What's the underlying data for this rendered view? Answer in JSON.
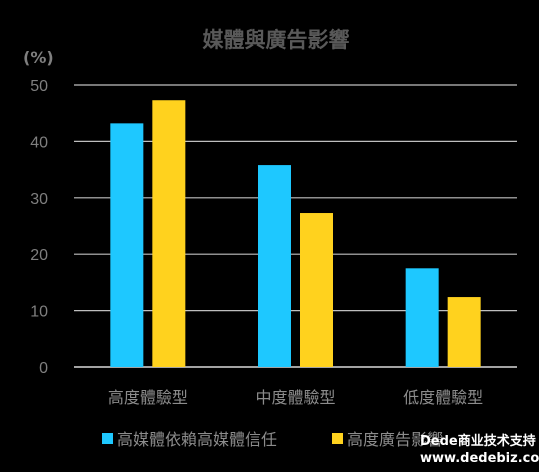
{
  "chart_data": {
    "type": "bar",
    "title": "媒體與廣告影響",
    "ylabel": "(%)",
    "xlabel": "",
    "ylim": [
      0,
      50
    ],
    "yticks": [
      0,
      10,
      20,
      30,
      40,
      50
    ],
    "grid": true,
    "legend_position": "bottom",
    "categories": [
      "高度體驗型",
      "中度體驗型",
      "低度體驗型"
    ],
    "series": [
      {
        "name": "高媒體依賴高媒體信任",
        "color": "#1EC8FF",
        "values": [
          43.2,
          35.8,
          17.5
        ]
      },
      {
        "name": "高度廣告影響",
        "color": "#FFD21E",
        "values": [
          47.3,
          27.3,
          12.4
        ]
      }
    ]
  },
  "watermark": {
    "line1": "Dede商业技术支持",
    "line2": "www.dedebiz.com"
  }
}
